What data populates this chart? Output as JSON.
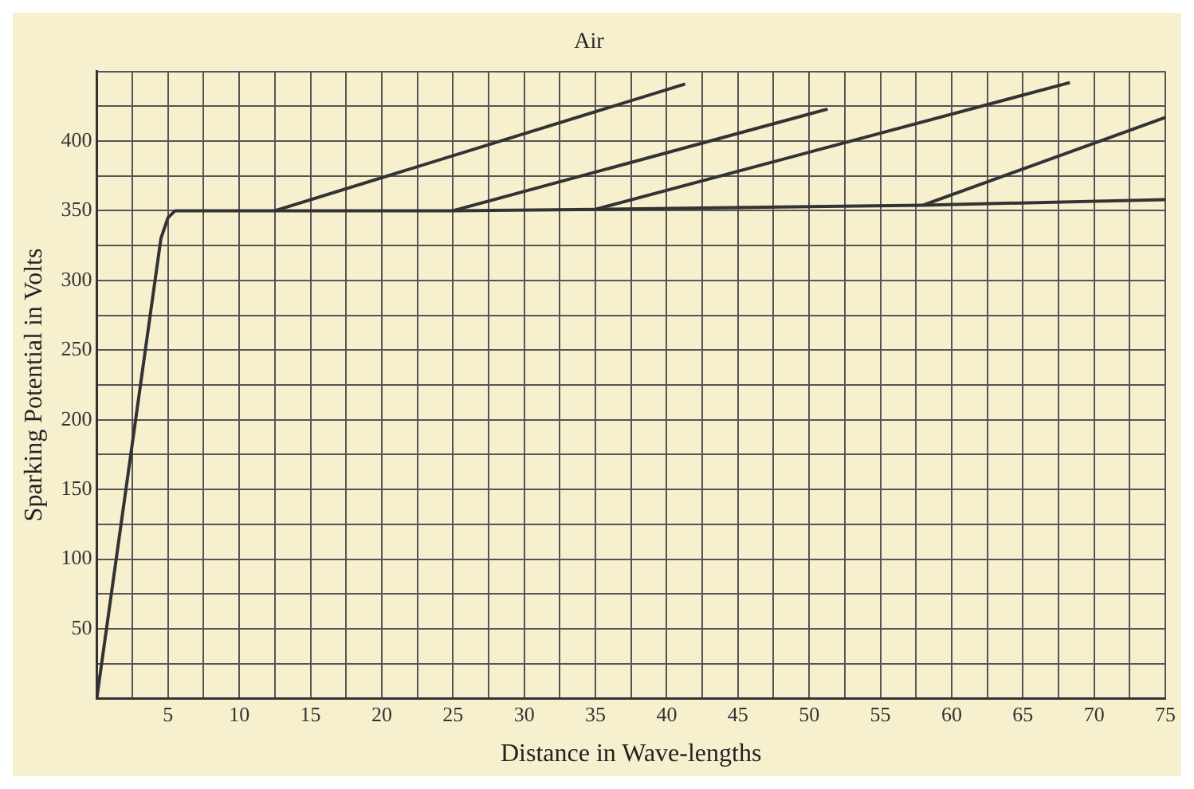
{
  "chart_data": {
    "type": "line",
    "title": "Air",
    "xlabel": "Distance in Wave-lengths",
    "ylabel": "Sparking Potential in Volts",
    "xlim": [
      0,
      75
    ],
    "ylim": [
      0,
      450
    ],
    "xticks": [
      {
        "value": 0,
        "label": null
      },
      {
        "value": 2.5,
        "label": null
      },
      5,
      {
        "value": 7.5,
        "label": null
      },
      10,
      {
        "value": 12.5,
        "label": null
      },
      15,
      {
        "value": 17.5,
        "label": null
      },
      20,
      {
        "value": 22.5,
        "label": null
      },
      25,
      {
        "value": 27.5,
        "label": null
      },
      30,
      {
        "value": 32.5,
        "label": null
      },
      35,
      {
        "value": 37.5,
        "label": null
      },
      40,
      {
        "value": 42.5,
        "label": null
      },
      45,
      {
        "value": 47.5,
        "label": null
      },
      50,
      {
        "value": 52.5,
        "label": null
      },
      55,
      {
        "value": 57.5,
        "label": null
      },
      60,
      {
        "value": 62.5,
        "label": null
      },
      65,
      {
        "value": 67.5,
        "label": null
      },
      70,
      {
        "value": 72.5,
        "label": null
      },
      75
    ],
    "yticks": [
      {
        "value": 0,
        "label": null
      },
      {
        "value": 25,
        "label": null
      },
      50,
      {
        "value": 75,
        "label": null
      },
      100,
      {
        "value": 125,
        "label": null
      },
      150,
      {
        "value": 175,
        "label": null
      },
      200,
      {
        "value": 225,
        "label": null
      },
      250,
      {
        "value": 275,
        "label": null
      },
      300,
      {
        "value": 325,
        "label": null
      },
      350,
      {
        "value": 375,
        "label": null
      },
      400,
      {
        "value": 425,
        "label": null
      },
      {
        "value": 450,
        "label": null
      }
    ],
    "grid": true,
    "marker": "none",
    "line_style": "solid",
    "legend": false,
    "series": [
      {
        "color": "#333333",
        "x": [
          0,
          4.5,
          5,
          5.5,
          12.5,
          25,
          35,
          58,
          75
        ],
        "values": [
          0,
          330,
          345,
          350,
          350,
          350,
          351,
          354,
          358
        ]
      },
      {
        "color": "#333333",
        "x": [
          12.5,
          41.3
        ],
        "values": [
          350,
          441
        ]
      },
      {
        "color": "#333333",
        "x": [
          25,
          51.3
        ],
        "values": [
          350,
          423
        ]
      },
      {
        "color": "#333333",
        "x": [
          35,
          68.3
        ],
        "values": [
          351,
          442
        ]
      },
      {
        "color": "#333333",
        "x": [
          58,
          75
        ],
        "values": [
          354,
          417
        ]
      }
    ]
  }
}
